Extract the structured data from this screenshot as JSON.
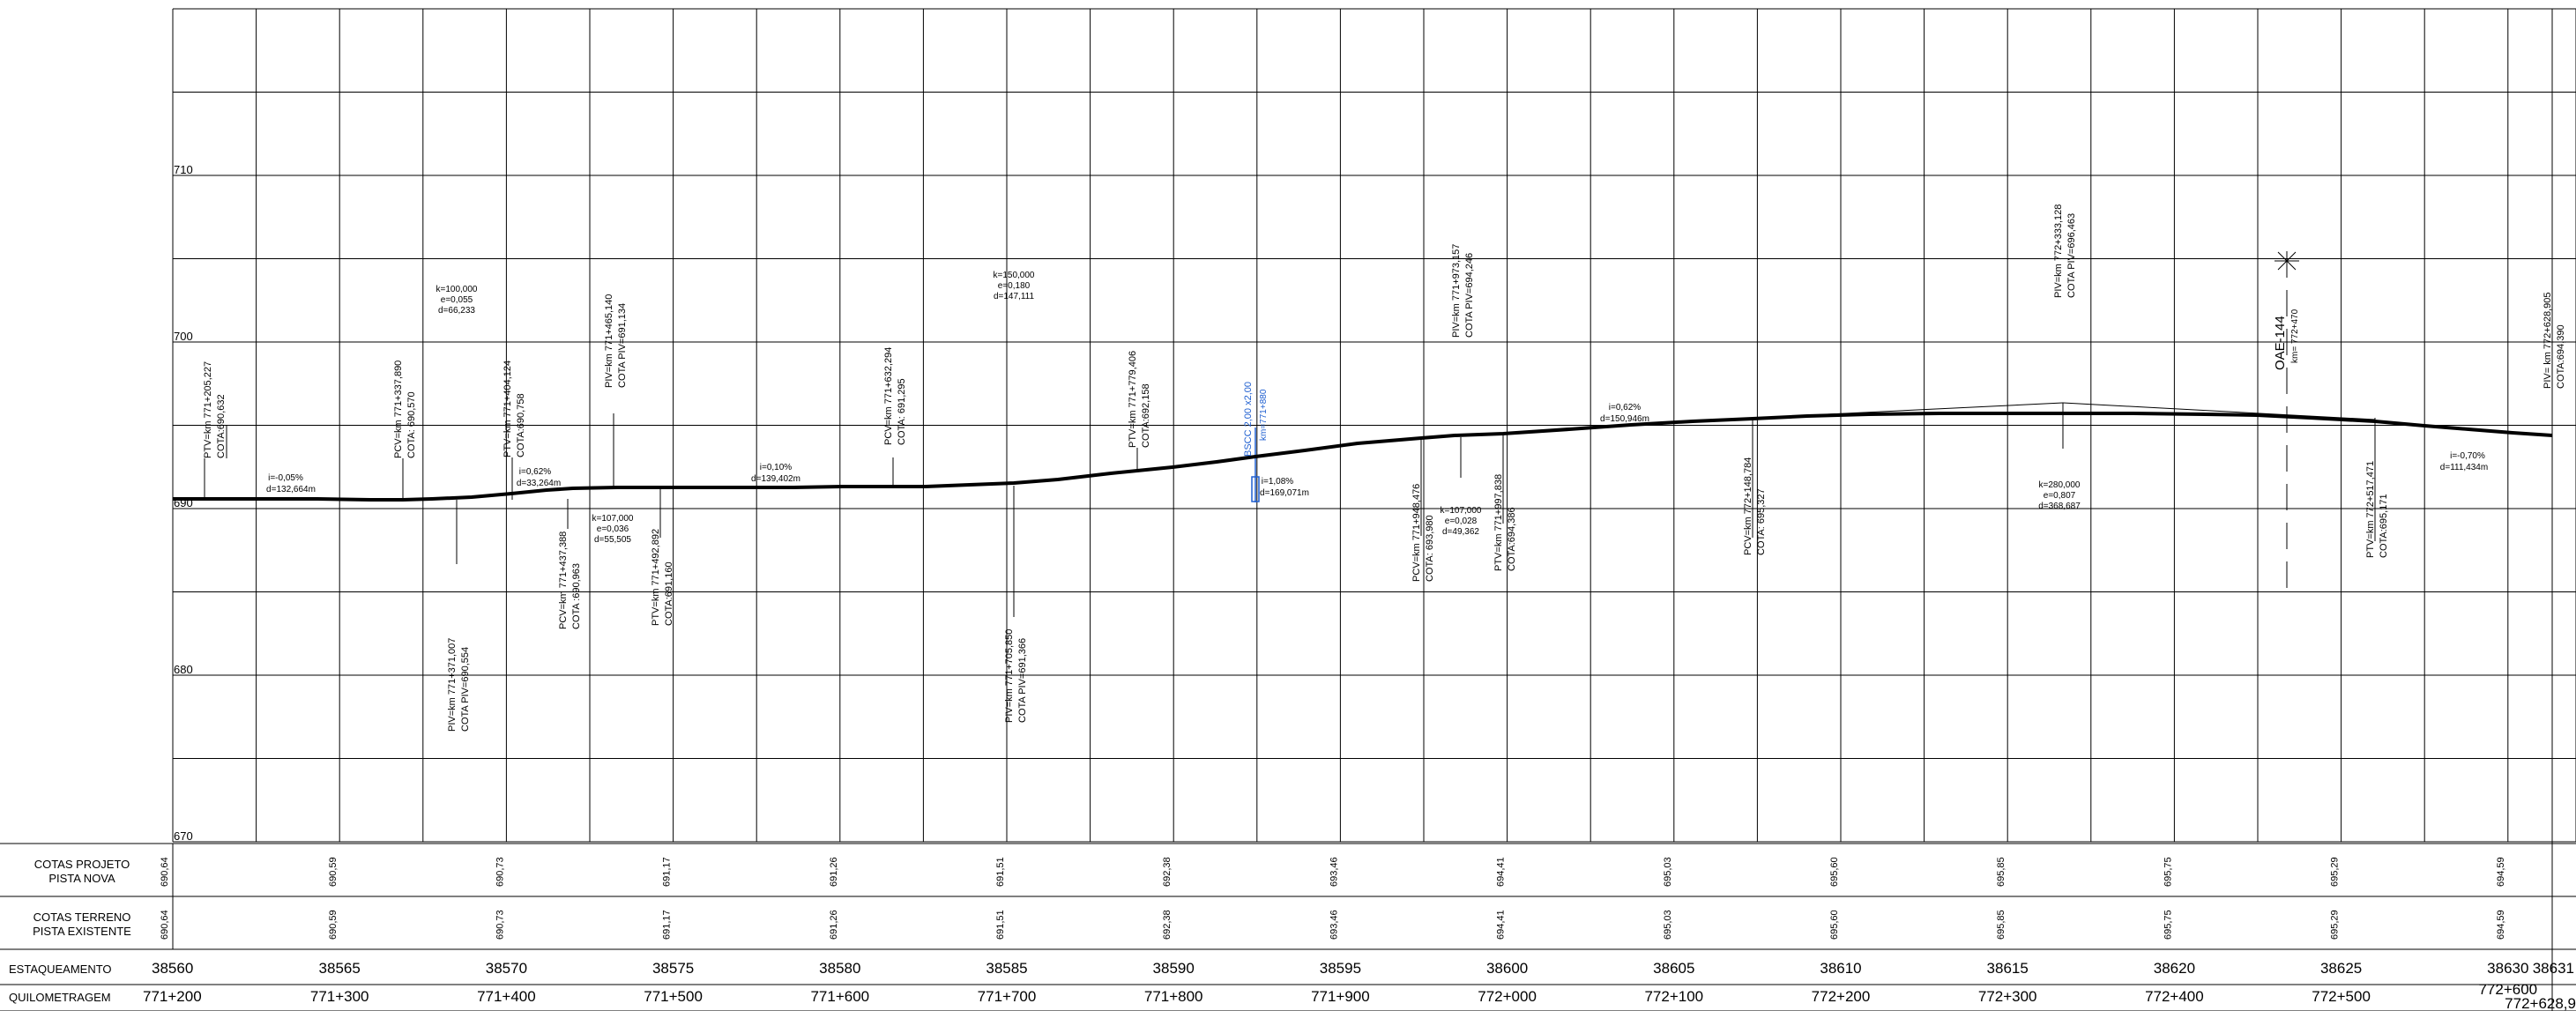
{
  "profile": {
    "elevation_labels": [
      "710",
      "700",
      "690",
      "680",
      "670"
    ],
    "elevation_values": [
      710,
      700,
      690,
      680,
      670
    ]
  },
  "table": {
    "row_labels": {
      "cotas_projeto": [
        "COTAS PROJETO",
        "PISTA NOVA"
      ],
      "cotas_terreno": [
        "COTAS TERRENO",
        "PISTA EXISTENTE"
      ],
      "estaqueamento": "ESTAQUEAMENTO",
      "quilometragem": "QUILOMETRAGEM"
    },
    "cotas_projeto": [
      "690,64",
      "690,59",
      "690,73",
      "691,17",
      "691,26",
      "691,51",
      "692,38",
      "693,46",
      "694,41",
      "695,03",
      "695,60",
      "695,85",
      "695,75",
      "695,29",
      "694,59"
    ],
    "cotas_terreno": [
      "690,64",
      "690,59",
      "690,73",
      "691,17",
      "691,26",
      "691,51",
      "692,38",
      "693,46",
      "694,41",
      "695,03",
      "695,60",
      "695,85",
      "695,75",
      "695,29",
      "694,59"
    ],
    "estacas": [
      "38560",
      "38565",
      "38570",
      "38575",
      "38580",
      "38585",
      "38590",
      "38595",
      "38600",
      "38605",
      "38610",
      "38615",
      "38620",
      "38625",
      "38630"
    ],
    "estaca_final": "38631",
    "km": [
      "771+200",
      "771+300",
      "771+400",
      "771+500",
      "771+600",
      "771+700",
      "771+800",
      "771+900",
      "772+000",
      "772+100",
      "772+200",
      "772+300",
      "772+400",
      "772+500",
      "772+600"
    ],
    "km_final": "772+628,9"
  },
  "annotations": {
    "ptv_771_205": [
      "PTV=km 771+205,227",
      "COTA:690,632"
    ],
    "pcv_771_337": [
      "PCV=km 771+337,890",
      "COTA: 690,570"
    ],
    "ptv_771_404": [
      "PTV=km 771+404,124",
      "COTA:690,758"
    ],
    "piv_771_465": [
      "PIV=km 771+465,140",
      "COTA PIV=691,134"
    ],
    "curve_100": [
      "k=100,000",
      "e=0,055",
      "d=66,233"
    ],
    "pcv_771_632": [
      "PCV=km 771+632,294",
      "COTA: 691,295"
    ],
    "curve_150": [
      "k=150,000",
      "e=0,180",
      "d=147,111"
    ],
    "ptv_771_779": [
      "PTV=km 771+779,406",
      "COTA:692,158"
    ],
    "bscc": [
      "BSCC 2,00 x2,00",
      "km=771+880"
    ],
    "piv_771_973": [
      "PIV=km 771+973,157",
      "COTA PIV=694,246"
    ],
    "piv_772_333": [
      "PIV=km 772+333,128",
      "COTA PIV=696,463"
    ],
    "oae": [
      "OAE-144",
      "km= 772+470"
    ],
    "piv_772_628": [
      "PIV= km 772+628,905",
      "COTA:694,390"
    ],
    "grade_1": [
      "i=-0,05%",
      "d=132,664m"
    ],
    "grade_2": [
      "i=0,62%",
      "d=33,264m"
    ],
    "grade_3": [
      "i=0,10%",
      "d=139,402m"
    ],
    "grade_4": [
      "i=1,08%",
      "d=169,071m"
    ],
    "grade_5": [
      "i=0,62%",
      "d=150,946m"
    ],
    "grade_6": [
      "i=-0,70%",
      "d=111,434m"
    ],
    "piv_771_371": [
      "PIV=km 771+371,007",
      "COTA PIV=690,554"
    ],
    "pcv_771_437": [
      "PCV=km 771+437,388",
      "COTA :690,963"
    ],
    "curve_107a": [
      "k=107,000",
      "e=0,036",
      "d=55,505"
    ],
    "ptv_771_492": [
      "PTV=km 771+492,892",
      "COTA:691,160"
    ],
    "piv_771_705": [
      "PIV=km 771+705,850",
      "COTA PIV=691,366"
    ],
    "pcv_771_948": [
      "PCV=km 771+948,476",
      "COTA: 693,980"
    ],
    "curve_107b": [
      "k=107,000",
      "e=0,028",
      "d=49,362"
    ],
    "ptv_771_997": [
      "PTV=km 771+997,838",
      "COTA:694,386"
    ],
    "pcv_772_148": [
      "PCV=km 772+148,784",
      "COTA: 695,327"
    ],
    "curve_280": [
      "k=280,000",
      "e=0,807",
      "d=368,687"
    ],
    "ptv_772_517": [
      "PTV=km 772+517,471",
      "COTA:695,171"
    ]
  },
  "colors": {
    "lines": "#000000",
    "grid": "#000000",
    "culvert": "#1f5fd0"
  }
}
